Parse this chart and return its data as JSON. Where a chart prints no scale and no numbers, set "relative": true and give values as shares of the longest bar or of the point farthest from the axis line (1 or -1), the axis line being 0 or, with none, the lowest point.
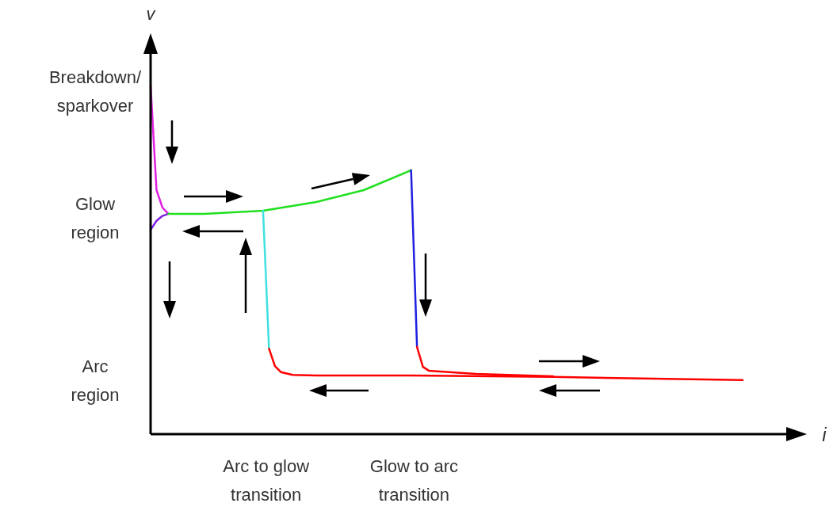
{
  "chart_data": {
    "type": "line",
    "relative": true,
    "xlabel": "i",
    "ylabel": "v",
    "categories": [
      null,
      null,
      null,
      null,
      null,
      null,
      null,
      null,
      null,
      null,
      null,
      null,
      null,
      null,
      null,
      null,
      null,
      null,
      null,
      null,
      null,
      null,
      null,
      null,
      null,
      null,
      null,
      null,
      null,
      null,
      null,
      null,
      null,
      null,
      null,
      null,
      null,
      null,
      null,
      null,
      null,
      null,
      null,
      null,
      null,
      null,
      null,
      null,
      null,
      null,
      null,
      null,
      null,
      null,
      null,
      null,
      null,
      null,
      null,
      null,
      null,
      null,
      null,
      null,
      null,
      null,
      null,
      null,
      null,
      null,
      null,
      null,
      null,
      null,
      null,
      null,
      null,
      null,
      null,
      null,
      null,
      null,
      null,
      null,
      null,
      null,
      null,
      null,
      null,
      null,
      null,
      null,
      null,
      null,
      null,
      null,
      null,
      null,
      null,
      null,
      null
    ],
    "series": [
      {
        "color": "#e020e0",
        "values": [
          1.0,
          0.7,
          0.65,
          0.632,
          null,
          null,
          null,
          null,
          null,
          null,
          null,
          null,
          null,
          null,
          null,
          null,
          null,
          null,
          null,
          null,
          null,
          null,
          null,
          null,
          null,
          null,
          null,
          null,
          null,
          null,
          null,
          null,
          null,
          null,
          null,
          null,
          null,
          null,
          null,
          null,
          null,
          null,
          null,
          null,
          null,
          null,
          null,
          null,
          null,
          null,
          null,
          null,
          null,
          null,
          null,
          null,
          null,
          null,
          null,
          null,
          null,
          null,
          null,
          null,
          null,
          null,
          null,
          null,
          null,
          null,
          null,
          null,
          null,
          null,
          null,
          null,
          null,
          null,
          null,
          null,
          null,
          null,
          null,
          null,
          null,
          null,
          null,
          null,
          null,
          null,
          null,
          null,
          null,
          null,
          null,
          null,
          null,
          null,
          null,
          null,
          null
        ]
      },
      {
        "color": "#8020e0",
        "values": [
          0.586,
          0.612,
          0.626,
          0.632,
          null,
          null,
          null,
          null,
          null,
          null,
          null,
          null,
          null,
          null,
          null,
          null,
          null,
          null,
          null,
          null,
          null,
          null,
          null,
          null,
          null,
          null,
          null,
          null,
          null,
          null,
          null,
          null,
          null,
          null,
          null,
          null,
          null,
          null,
          null,
          null,
          null,
          null,
          null,
          null,
          null,
          null,
          null,
          null,
          null,
          null,
          null,
          null,
          null,
          null,
          null,
          null,
          null,
          null,
          null,
          null,
          null,
          null,
          null,
          null,
          null,
          null,
          null,
          null,
          null,
          null,
          null,
          null,
          null,
          null,
          null,
          null,
          null,
          null,
          null,
          null,
          null,
          null,
          null,
          null,
          null,
          null,
          null,
          null,
          null,
          null,
          null,
          null,
          null,
          null,
          null,
          null,
          null,
          null,
          null,
          null,
          null
        ]
      },
      {
        "color": "#20e020",
        "values": [
          null,
          null,
          null,
          0.632,
          null,
          null,
          null,
          null,
          null,
          0.632,
          null,
          null,
          null,
          null,
          null,
          null,
          null,
          null,
          null,
          0.641,
          null,
          null,
          null,
          null,
          null,
          null,
          null,
          null,
          0.666,
          null,
          null,
          null,
          null,
          null,
          null,
          null,
          0.7,
          null,
          null,
          null,
          null,
          null,
          null,
          null,
          0.757,
          null,
          null,
          null,
          null,
          null,
          null,
          null,
          null,
          null,
          null,
          null,
          null,
          null,
          null,
          null,
          null,
          null,
          null,
          null,
          null,
          null,
          null,
          null,
          null,
          null,
          null,
          null,
          null,
          null,
          null,
          null,
          null,
          null,
          null,
          null,
          null,
          null,
          null,
          null,
          null,
          null,
          null,
          null,
          null,
          null,
          null,
          null,
          null,
          null,
          null,
          null,
          null,
          null,
          null,
          null,
          null
        ]
      },
      {
        "color": "#40e0e0",
        "values": [
          null,
          null,
          null,
          null,
          null,
          null,
          null,
          null,
          null,
          null,
          null,
          null,
          null,
          null,
          null,
          null,
          null,
          null,
          null,
          0.641,
          0.245,
          null,
          null,
          null,
          null,
          null,
          null,
          null,
          null,
          null,
          null,
          null,
          null,
          null,
          null,
          null,
          null,
          null,
          null,
          null,
          null,
          null,
          null,
          null,
          null,
          null,
          null,
          null,
          null,
          null,
          null,
          null,
          null,
          null,
          null,
          null,
          null,
          null,
          null,
          null,
          null,
          null,
          null,
          null,
          null,
          null,
          null,
          null,
          null,
          null,
          null,
          null,
          null,
          null,
          null,
          null,
          null,
          null,
          null,
          null,
          null,
          null,
          null,
          null,
          null,
          null,
          null,
          null,
          null,
          null,
          null,
          null,
          null,
          null,
          null,
          null,
          null,
          null,
          null,
          null,
          null
        ]
      },
      {
        "color": "#2020e0",
        "values": [
          null,
          null,
          null,
          null,
          null,
          null,
          null,
          null,
          null,
          null,
          null,
          null,
          null,
          null,
          null,
          null,
          null,
          null,
          null,
          null,
          null,
          null,
          null,
          null,
          null,
          null,
          null,
          null,
          null,
          null,
          null,
          null,
          null,
          null,
          null,
          null,
          null,
          null,
          null,
          null,
          null,
          null,
          null,
          null,
          0.757,
          0.25,
          null,
          null,
          null,
          null,
          null,
          null,
          null,
          null,
          null,
          null,
          null,
          null,
          null,
          null,
          null,
          null,
          null,
          null,
          null,
          null,
          null,
          null,
          null,
          null,
          null,
          null,
          null,
          null,
          null,
          null,
          null,
          null,
          null,
          null,
          null,
          null,
          null,
          null,
          null,
          null,
          null,
          null,
          null,
          null,
          null,
          null,
          null,
          null,
          null,
          null,
          null,
          null,
          null,
          null,
          null
        ]
      },
      {
        "color": "#ff0000",
        "values": [
          null,
          null,
          null,
          null,
          null,
          null,
          null,
          null,
          null,
          null,
          null,
          null,
          null,
          null,
          null,
          null,
          null,
          null,
          null,
          null,
          0.245,
          0.195,
          0.178,
          null,
          0.17,
          null,
          null,
          null,
          0.168,
          null,
          null,
          null,
          null,
          null,
          null,
          null,
          null,
          null,
          null,
          null,
          null,
          null,
          null,
          null,
          0.168,
          null,
          null,
          null,
          null,
          null,
          null,
          null,
          null,
          null,
          null,
          null,
          null,
          null,
          null,
          null,
          null,
          null,
          null,
          null,
          null,
          null,
          null,
          null,
          0.164,
          null,
          null,
          null,
          null,
          null,
          null,
          null,
          null,
          null,
          null,
          null,
          null,
          null,
          null,
          null,
          null,
          null,
          null,
          null,
          null,
          null,
          null,
          null,
          null,
          null,
          null,
          null,
          null,
          null,
          null,
          null,
          0.155
        ]
      },
      {
        "color": "#ff0000",
        "values": [
          null,
          null,
          null,
          null,
          null,
          null,
          null,
          null,
          null,
          null,
          null,
          null,
          null,
          null,
          null,
          null,
          null,
          null,
          null,
          null,
          null,
          null,
          null,
          null,
          null,
          null,
          null,
          null,
          null,
          null,
          null,
          null,
          null,
          null,
          null,
          null,
          null,
          null,
          null,
          null,
          null,
          null,
          null,
          null,
          null,
          0.25,
          0.193,
          0.182,
          null,
          null,
          null,
          null,
          null,
          null,
          null,
          0.173,
          null,
          null,
          null,
          null,
          null,
          null,
          null,
          null,
          null,
          null,
          null,
          null,
          0.166,
          null,
          null,
          null,
          null,
          null,
          null,
          null,
          null,
          null,
          null,
          null,
          null,
          null,
          null,
          null,
          null,
          null,
          null,
          null,
          null,
          null,
          null,
          null,
          null,
          null,
          null,
          null,
          null,
          null,
          null,
          null,
          null
        ]
      }
    ],
    "annotations": [
      "Breakdown/ sparkover",
      "Glow region",
      "Arc region",
      "Arc to glow transition",
      "Glow to arc transition"
    ]
  }
}
